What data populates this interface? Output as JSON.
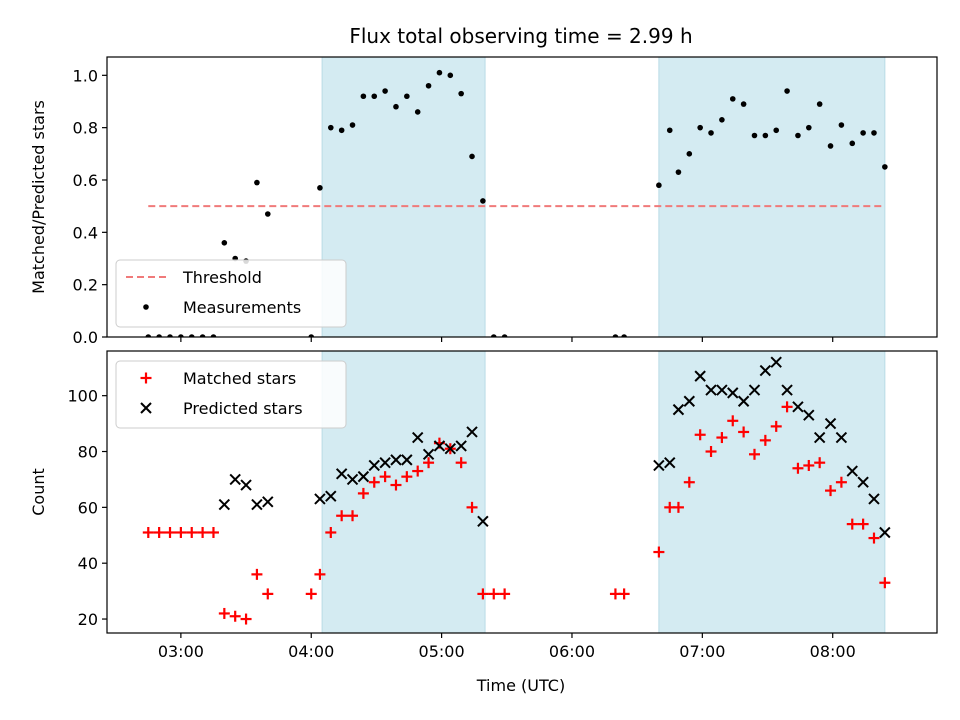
{
  "chart_data": [
    {
      "type": "scatter",
      "title": "Flux total observing time = 2.99 h",
      "xlabel": "",
      "ylabel": "Matched/Predicted stars",
      "xlim": [
        "02:26",
        "08:48"
      ],
      "ylim": [
        0,
        1.07
      ],
      "grid": false,
      "legend_position": "lower-left",
      "x_ticks": [
        "03:00",
        "04:00",
        "05:00",
        "06:00",
        "07:00",
        "08:00"
      ],
      "y_ticks": [
        "0.0",
        "0.2",
        "0.4",
        "0.6",
        "0.8",
        "1.0"
      ],
      "observing_windows": [
        [
          "04:05",
          "05:20"
        ],
        [
          "06:40",
          "08:24"
        ]
      ],
      "window_color": "#d4ebf2",
      "threshold": {
        "name": "Threshold",
        "value": 0.5,
        "x_range": [
          "02:45",
          "08:24"
        ],
        "color": "#f07a7a",
        "style": "dashed"
      },
      "series": [
        {
          "name": "Measurements",
          "color": "#000000",
          "marker": "dot",
          "points": [
            [
              "02:45",
              0.0
            ],
            [
              "02:50",
              0.0
            ],
            [
              "02:55",
              0.0
            ],
            [
              "03:00",
              0.0
            ],
            [
              "03:05",
              0.0
            ],
            [
              "03:10",
              0.0
            ],
            [
              "03:15",
              0.0
            ],
            [
              "03:20",
              0.36
            ],
            [
              "03:25",
              0.3
            ],
            [
              "03:30",
              0.29
            ],
            [
              "03:35",
              0.59
            ],
            [
              "03:40",
              0.47
            ],
            [
              "04:00",
              0.0
            ],
            [
              "04:04",
              0.57
            ],
            [
              "04:09",
              0.8
            ],
            [
              "04:14",
              0.79
            ],
            [
              "04:19",
              0.81
            ],
            [
              "04:24",
              0.92
            ],
            [
              "04:29",
              0.92
            ],
            [
              "04:34",
              0.94
            ],
            [
              "04:39",
              0.88
            ],
            [
              "04:44",
              0.92
            ],
            [
              "04:49",
              0.86
            ],
            [
              "04:54",
              0.96
            ],
            [
              "04:59",
              1.01
            ],
            [
              "05:04",
              1.0
            ],
            [
              "05:09",
              0.93
            ],
            [
              "05:14",
              0.69
            ],
            [
              "05:19",
              0.52
            ],
            [
              "05:24",
              0.0
            ],
            [
              "05:29",
              0.0
            ],
            [
              "06:20",
              0.0
            ],
            [
              "06:24",
              0.0
            ],
            [
              "06:40",
              0.58
            ],
            [
              "06:45",
              0.79
            ],
            [
              "06:49",
              0.63
            ],
            [
              "06:54",
              0.7
            ],
            [
              "06:59",
              0.8
            ],
            [
              "07:04",
              0.78
            ],
            [
              "07:09",
              0.83
            ],
            [
              "07:14",
              0.91
            ],
            [
              "07:19",
              0.89
            ],
            [
              "07:24",
              0.77
            ],
            [
              "07:29",
              0.77
            ],
            [
              "07:34",
              0.79
            ],
            [
              "07:39",
              0.94
            ],
            [
              "07:44",
              0.77
            ],
            [
              "07:49",
              0.8
            ],
            [
              "07:54",
              0.89
            ],
            [
              "07:59",
              0.73
            ],
            [
              "08:04",
              0.81
            ],
            [
              "08:09",
              0.74
            ],
            [
              "08:14",
              0.78
            ],
            [
              "08:19",
              0.78
            ],
            [
              "08:24",
              0.65
            ]
          ]
        }
      ]
    },
    {
      "type": "scatter",
      "title": "",
      "xlabel": "Time (UTC)",
      "ylabel": "Count",
      "xlim": [
        "02:26",
        "08:48"
      ],
      "ylim": [
        15,
        116
      ],
      "grid": false,
      "legend_position": "top-left",
      "x_ticks": [
        "03:00",
        "04:00",
        "05:00",
        "06:00",
        "07:00",
        "08:00"
      ],
      "y_ticks": [
        "20",
        "40",
        "60",
        "80",
        "100"
      ],
      "observing_windows": [
        [
          "04:05",
          "05:20"
        ],
        [
          "06:40",
          "08:24"
        ]
      ],
      "window_color": "#d4ebf2",
      "series": [
        {
          "name": "Matched stars",
          "color": "#ff0000",
          "marker": "plus",
          "points": [
            [
              "02:45",
              51
            ],
            [
              "02:50",
              51
            ],
            [
              "02:55",
              51
            ],
            [
              "03:00",
              51
            ],
            [
              "03:05",
              51
            ],
            [
              "03:10",
              51
            ],
            [
              "03:15",
              51
            ],
            [
              "03:20",
              22
            ],
            [
              "03:25",
              21
            ],
            [
              "03:30",
              20
            ],
            [
              "03:35",
              36
            ],
            [
              "03:40",
              29
            ],
            [
              "04:00",
              29
            ],
            [
              "04:04",
              36
            ],
            [
              "04:09",
              51
            ],
            [
              "04:14",
              57
            ],
            [
              "04:19",
              57
            ],
            [
              "04:24",
              65
            ],
            [
              "04:29",
              69
            ],
            [
              "04:34",
              71
            ],
            [
              "04:39",
              68
            ],
            [
              "04:44",
              71
            ],
            [
              "04:49",
              73
            ],
            [
              "04:54",
              76
            ],
            [
              "04:59",
              83
            ],
            [
              "05:04",
              81
            ],
            [
              "05:09",
              76
            ],
            [
              "05:14",
              60
            ],
            [
              "05:19",
              29
            ],
            [
              "05:24",
              29
            ],
            [
              "05:29",
              29
            ],
            [
              "06:20",
              29
            ],
            [
              "06:24",
              29
            ],
            [
              "06:40",
              44
            ],
            [
              "06:45",
              60
            ],
            [
              "06:49",
              60
            ],
            [
              "06:54",
              69
            ],
            [
              "06:59",
              86
            ],
            [
              "07:04",
              80
            ],
            [
              "07:09",
              85
            ],
            [
              "07:14",
              91
            ],
            [
              "07:19",
              87
            ],
            [
              "07:24",
              79
            ],
            [
              "07:29",
              84
            ],
            [
              "07:34",
              89
            ],
            [
              "07:39",
              96
            ],
            [
              "07:44",
              74
            ],
            [
              "07:49",
              75
            ],
            [
              "07:54",
              76
            ],
            [
              "07:59",
              66
            ],
            [
              "08:04",
              69
            ],
            [
              "08:09",
              54
            ],
            [
              "08:14",
              54
            ],
            [
              "08:19",
              49
            ],
            [
              "08:24",
              33
            ]
          ]
        },
        {
          "name": "Predicted stars",
          "color": "#000000",
          "marker": "x",
          "points": [
            [
              "03:20",
              61
            ],
            [
              "03:25",
              70
            ],
            [
              "03:30",
              68
            ],
            [
              "03:35",
              61
            ],
            [
              "03:40",
              62
            ],
            [
              "04:04",
              63
            ],
            [
              "04:09",
              64
            ],
            [
              "04:14",
              72
            ],
            [
              "04:19",
              70
            ],
            [
              "04:24",
              71
            ],
            [
              "04:29",
              75
            ],
            [
              "04:34",
              76
            ],
            [
              "04:39",
              77
            ],
            [
              "04:44",
              77
            ],
            [
              "04:49",
              85
            ],
            [
              "04:54",
              79
            ],
            [
              "04:59",
              82
            ],
            [
              "05:04",
              81
            ],
            [
              "05:09",
              82
            ],
            [
              "05:14",
              87
            ],
            [
              "05:19",
              55
            ],
            [
              "06:40",
              75
            ],
            [
              "06:45",
              76
            ],
            [
              "06:49",
              95
            ],
            [
              "06:54",
              98
            ],
            [
              "06:59",
              107
            ],
            [
              "07:04",
              102
            ],
            [
              "07:09",
              102
            ],
            [
              "07:14",
              101
            ],
            [
              "07:19",
              98
            ],
            [
              "07:24",
              102
            ],
            [
              "07:29",
              109
            ],
            [
              "07:34",
              112
            ],
            [
              "07:39",
              102
            ],
            [
              "07:44",
              96
            ],
            [
              "07:49",
              93
            ],
            [
              "07:54",
              85
            ],
            [
              "07:59",
              90
            ],
            [
              "08:04",
              85
            ],
            [
              "08:09",
              73
            ],
            [
              "08:14",
              69
            ],
            [
              "08:19",
              63
            ],
            [
              "08:24",
              51
            ]
          ]
        }
      ]
    }
  ]
}
